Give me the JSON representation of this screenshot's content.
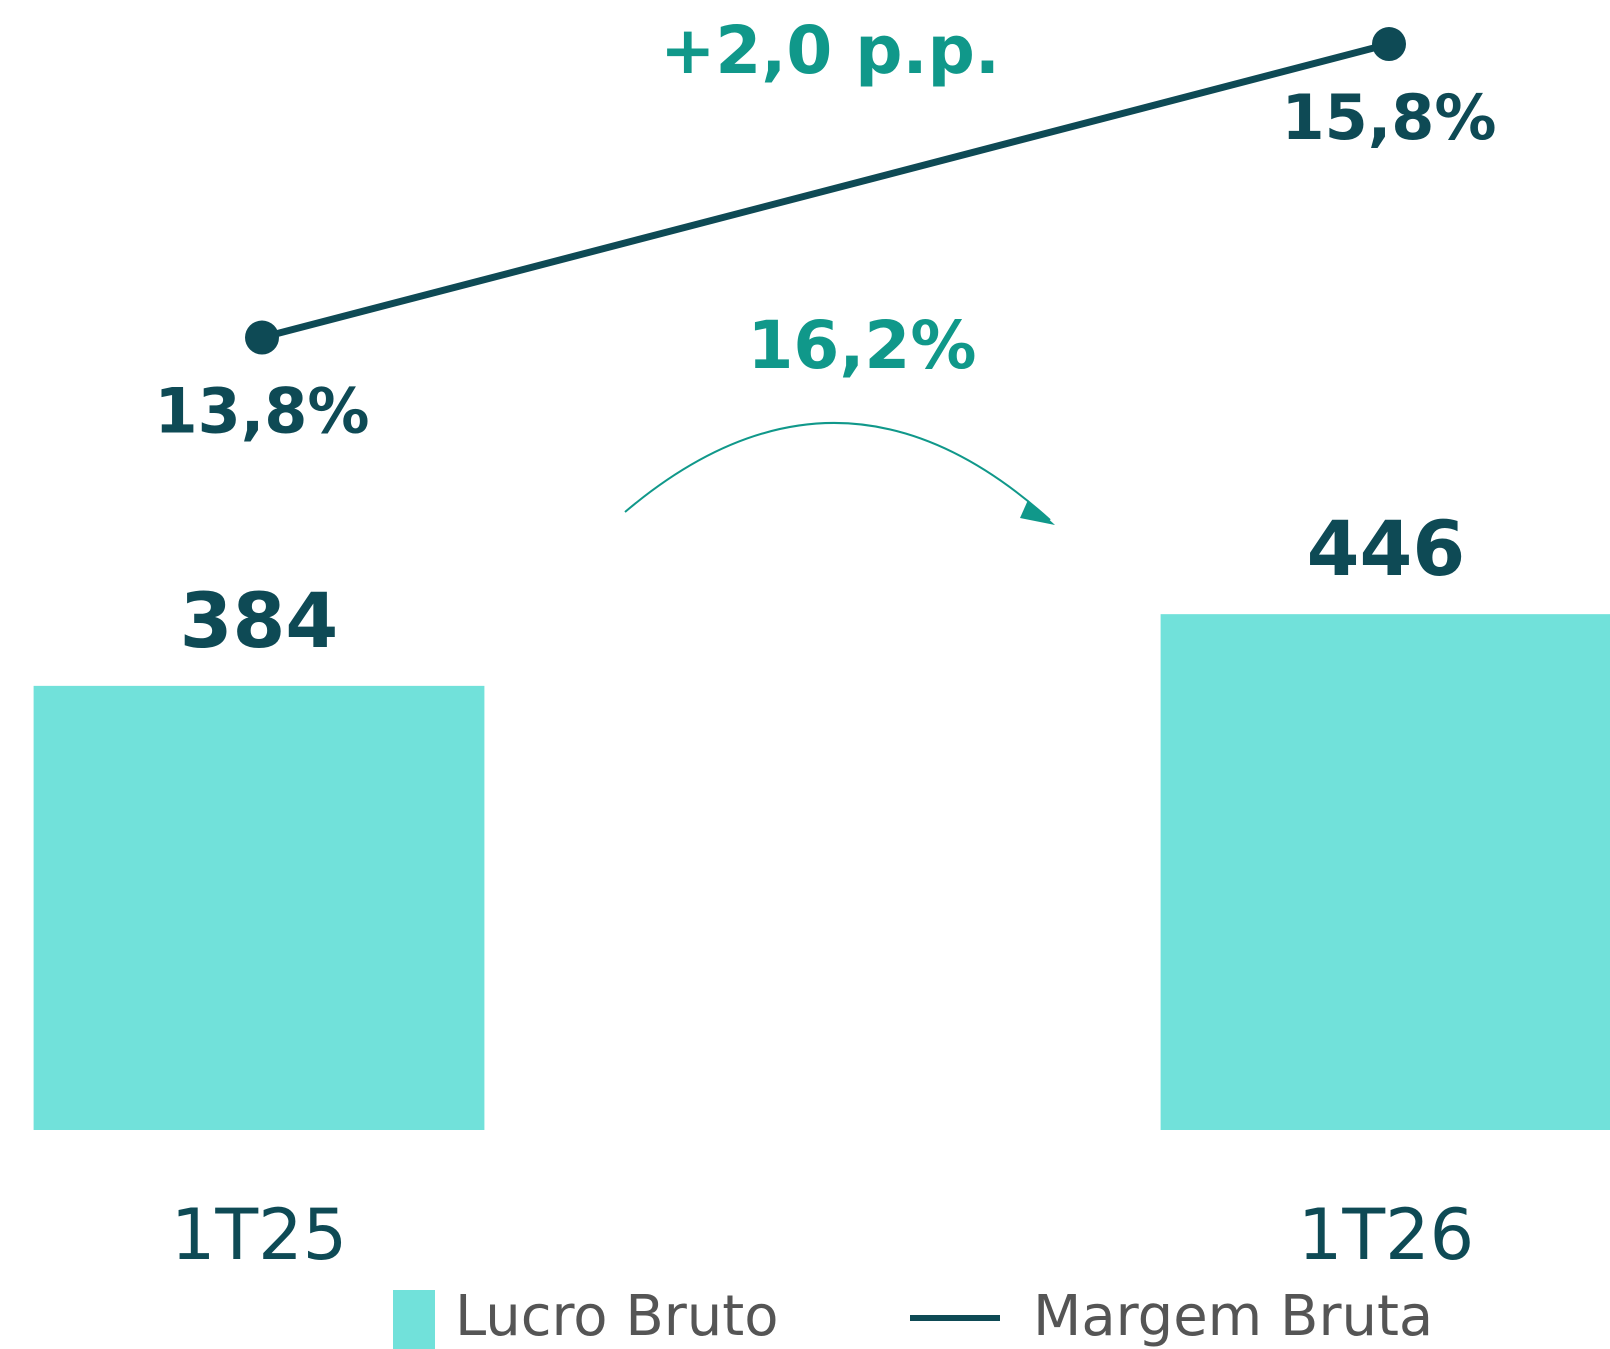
{
  "chart_data": {
    "type": "bar",
    "categories": [
      "1T25",
      "1T26"
    ],
    "series": [
      {
        "name": "Lucro Bruto",
        "color": "#71e1da",
        "values": [
          384,
          446
        ]
      },
      {
        "name": "Margem Bruta",
        "type": "line",
        "axis": "y2",
        "color": "#0e4a55",
        "values": [
          13.8,
          15.8
        ],
        "value_labels": [
          "13,8%",
          "15,8%"
        ]
      }
    ],
    "annotations": [
      "+2,0 p.p.",
      "16,2%"
    ],
    "ylim": [
      0,
      977
    ],
    "y2lim": [
      8.4,
      16.1
    ],
    "legend": "bottom"
  }
}
